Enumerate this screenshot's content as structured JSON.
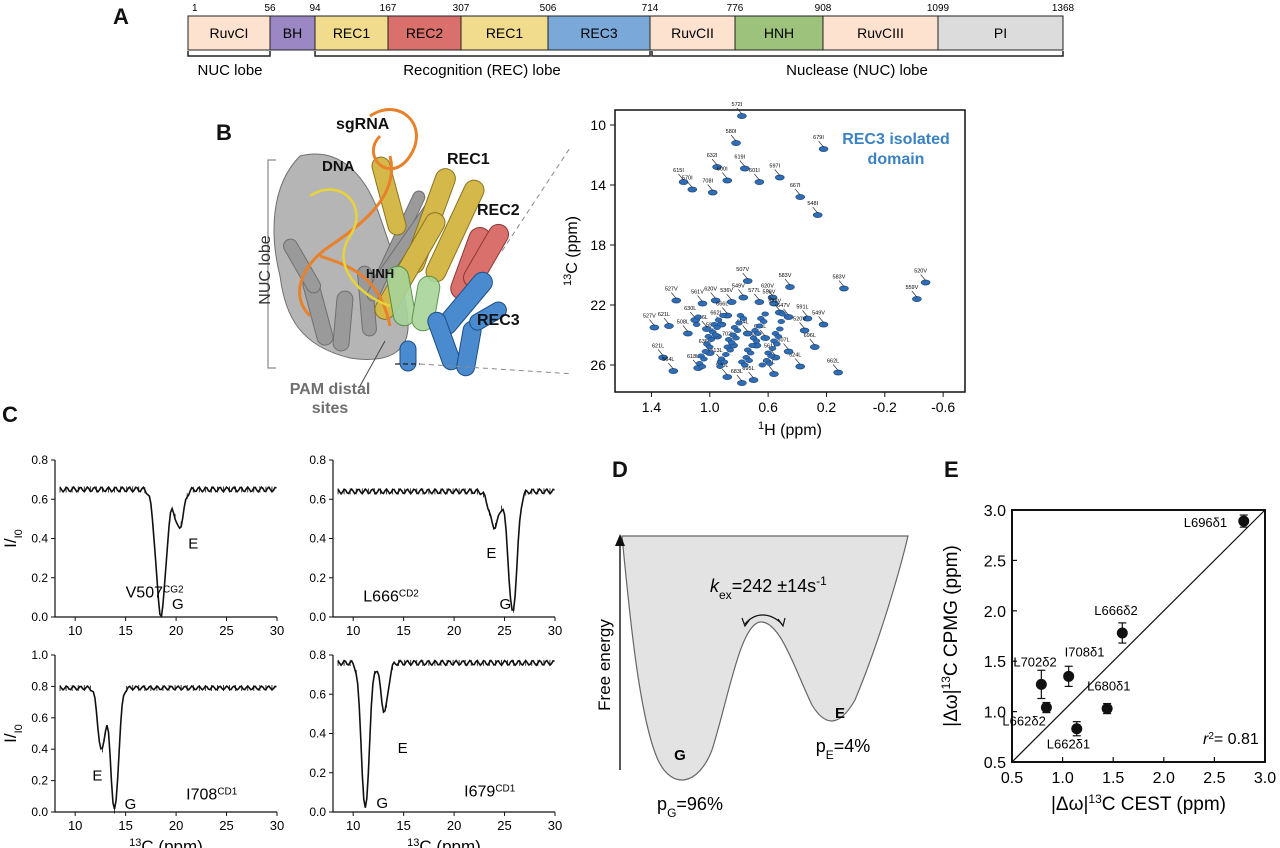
{
  "panels": {
    "a": "A",
    "b": "B",
    "c": "C",
    "d": "D",
    "e": "E"
  },
  "domain_map": {
    "positions": [
      "1",
      "56",
      "94",
      "167",
      "307",
      "506",
      "714",
      "776",
      "908",
      "1099",
      "1368"
    ],
    "domains": [
      {
        "label": "RuvCI",
        "color": "#fde2cf"
      },
      {
        "label": "BH",
        "color": "#9b87c4"
      },
      {
        "label": "REC1",
        "color": "#f0dc8c"
      },
      {
        "label": "REC2",
        "color": "#d9706b"
      },
      {
        "label": "REC1",
        "color": "#f0dc8c"
      },
      {
        "label": "REC3",
        "color": "#7aa8d8"
      },
      {
        "label": "RuvCII",
        "color": "#fde2cf"
      },
      {
        "label": "HNH",
        "color": "#9cc27c"
      },
      {
        "label": "RuvCIII",
        "color": "#fde2cf"
      },
      {
        "label": "PI",
        "color": "#dcdcdc"
      }
    ],
    "lobes": [
      "NUC lobe",
      "Recognition (REC) lobe",
      "Nuclease (NUC) lobe"
    ]
  },
  "structure": {
    "labels": {
      "sgrna": "sgRNA",
      "dna": "DNA",
      "rec1": "REC1",
      "rec2": "REC2",
      "hnh": "HNH",
      "rec3": "REC3",
      "nuc_lobe": "NUC lobe",
      "pam_line1": "PAM distal",
      "pam_line2": "sites"
    },
    "colors": {
      "sgrna": "#e9802a",
      "dna": "#e8d33a",
      "rec1": "#c9a82a",
      "rec2": "#e0356b",
      "hnh": "#4db34a",
      "rec3": "#3b82c4",
      "gray": "#808080"
    }
  },
  "hmqc": {
    "title_line1": "REC3 isolated",
    "title_line2": "domain",
    "title_color": "#3b82c4",
    "xlabel": "1H (ppm)",
    "ylabel": "13C (ppm)",
    "x_ticks": [
      "1.4",
      "1.0",
      "0.6",
      "0.2",
      "-0.2",
      "-0.6"
    ],
    "y_ticks": [
      "10",
      "14",
      "18",
      "22",
      "26"
    ],
    "peaks": [
      {
        "l": "572I"
      },
      {
        "l": "580I"
      },
      {
        "l": "632I"
      },
      {
        "l": "679I"
      },
      {
        "l": "615I"
      },
      {
        "l": "570I"
      },
      {
        "l": "619I"
      },
      {
        "l": "600I"
      },
      {
        "l": "708I"
      },
      {
        "l": "601I"
      },
      {
        "l": "597I"
      },
      {
        "l": "667I"
      },
      {
        "l": "548I"
      },
      {
        "l": "507V"
      },
      {
        "l": "583V"
      },
      {
        "l": "583V"
      },
      {
        "l": "520V"
      },
      {
        "l": "559V"
      },
      {
        "l": "527V"
      },
      {
        "l": "561V"
      },
      {
        "l": "620V"
      },
      {
        "l": "536V"
      },
      {
        "l": "549V"
      },
      {
        "l": "577L"
      },
      {
        "l": "620V"
      },
      {
        "l": "559V"
      },
      {
        "l": "578V"
      },
      {
        "l": "647V"
      },
      {
        "l": "591L"
      },
      {
        "l": "549V"
      },
      {
        "l": "527V"
      },
      {
        "l": "621L"
      },
      {
        "l": "508L"
      },
      {
        "l": "666L"
      },
      {
        "l": "651L"
      },
      {
        "l": "696L"
      },
      {
        "l": "621L"
      },
      {
        "l": "561V"
      },
      {
        "l": "564L"
      },
      {
        "l": "618L"
      },
      {
        "l": "513L"
      },
      {
        "l": "540L"
      },
      {
        "l": "683L"
      },
      {
        "l": "695L"
      },
      {
        "l": "591L"
      },
      {
        "l": "662L"
      },
      {
        "l": "524L"
      },
      {
        "l": "607L"
      },
      {
        "l": "702L"
      },
      {
        "l": "597L"
      },
      {
        "l": "680L"
      },
      {
        "l": "630L"
      },
      {
        "l": "662L"
      },
      {
        "l": "636L"
      },
      {
        "l": "654L"
      },
      {
        "l": "520V"
      },
      {
        "l": "666L"
      }
    ]
  },
  "cest": {
    "ylabel": "I/I0",
    "xlabel": "13C (ppm)",
    "x_ticks": [
      "10",
      "15",
      "20",
      "25",
      "30"
    ],
    "plots": [
      {
        "id": "v507",
        "residue": "V507",
        "sup": "CG2",
        "ylim": [
          0,
          0.8
        ],
        "yticks": [
          "0.0",
          "0.2",
          "0.4",
          "0.6",
          "0.8"
        ],
        "major_label": "G",
        "minor_label": "E"
      },
      {
        "id": "l666",
        "residue": "L666",
        "sup": "CD2",
        "ylim": [
          0,
          0.8
        ],
        "yticks": [
          "0.0",
          "0.2",
          "0.4",
          "0.6",
          "0.8"
        ],
        "major_label": "G",
        "minor_label": "E"
      },
      {
        "id": "i708",
        "residue": "I708",
        "sup": "CD1",
        "ylim": [
          0,
          1.0
        ],
        "yticks": [
          "0.0",
          "0.2",
          "0.4",
          "0.6",
          "0.8",
          "1.0"
        ],
        "major_label": "G",
        "minor_label": "E"
      },
      {
        "id": "i679",
        "residue": "I679",
        "sup": "CD1",
        "ylim": [
          0,
          0.8
        ],
        "yticks": [
          "0.0",
          "0.2",
          "0.4",
          "0.6",
          "0.8"
        ],
        "major_label": "G",
        "minor_label": "E"
      }
    ]
  },
  "energy": {
    "ylabel": "Free energy",
    "kex_k": "k",
    "kex_sub": "ex",
    "kex_value": "=242 ±14s",
    "kex_sup": "-1",
    "g_label": "G",
    "e_label": "E",
    "pg_p": "p",
    "pg_sub": "G",
    "pg_val": "=96%",
    "pe_p": "p",
    "pe_sub": "E",
    "pe_val": "=4%"
  },
  "chart_data": {
    "type": "scatter",
    "title": "",
    "xlabel": "|Δω|13C CEST (ppm)",
    "ylabel": "|Δω|13C CPMG (ppm)",
    "xlim": [
      0.5,
      3.0
    ],
    "ylim": [
      0.5,
      3.0
    ],
    "x_ticks": [
      "0.5",
      "1.0",
      "1.5",
      "2.0",
      "2.5",
      "3.0"
    ],
    "y_ticks": [
      "0.5",
      "1.0",
      "1.5",
      "2.0",
      "2.5",
      "3.0"
    ],
    "annotation": "r2= 0.81",
    "points": [
      {
        "label": "L696δ1",
        "x": 2.79,
        "y": 2.89,
        "err": 0.06
      },
      {
        "label": "L666δ2",
        "x": 1.59,
        "y": 1.78,
        "err": 0.1
      },
      {
        "label": "I708δ1",
        "x": 1.06,
        "y": 1.35,
        "err": 0.1
      },
      {
        "label": "L702δ2",
        "x": 0.79,
        "y": 1.27,
        "err": 0.14
      },
      {
        "label": "L662δ2",
        "x": 0.84,
        "y": 1.04,
        "err": 0.05
      },
      {
        "label": "L680δ1",
        "x": 1.44,
        "y": 1.03,
        "err": 0.05
      },
      {
        "label": "L662δ1",
        "x": 1.14,
        "y": 0.83,
        "err": 0.07
      }
    ],
    "diagonal": [
      [
        0.5,
        0.5
      ],
      [
        3.0,
        3.0
      ]
    ]
  }
}
